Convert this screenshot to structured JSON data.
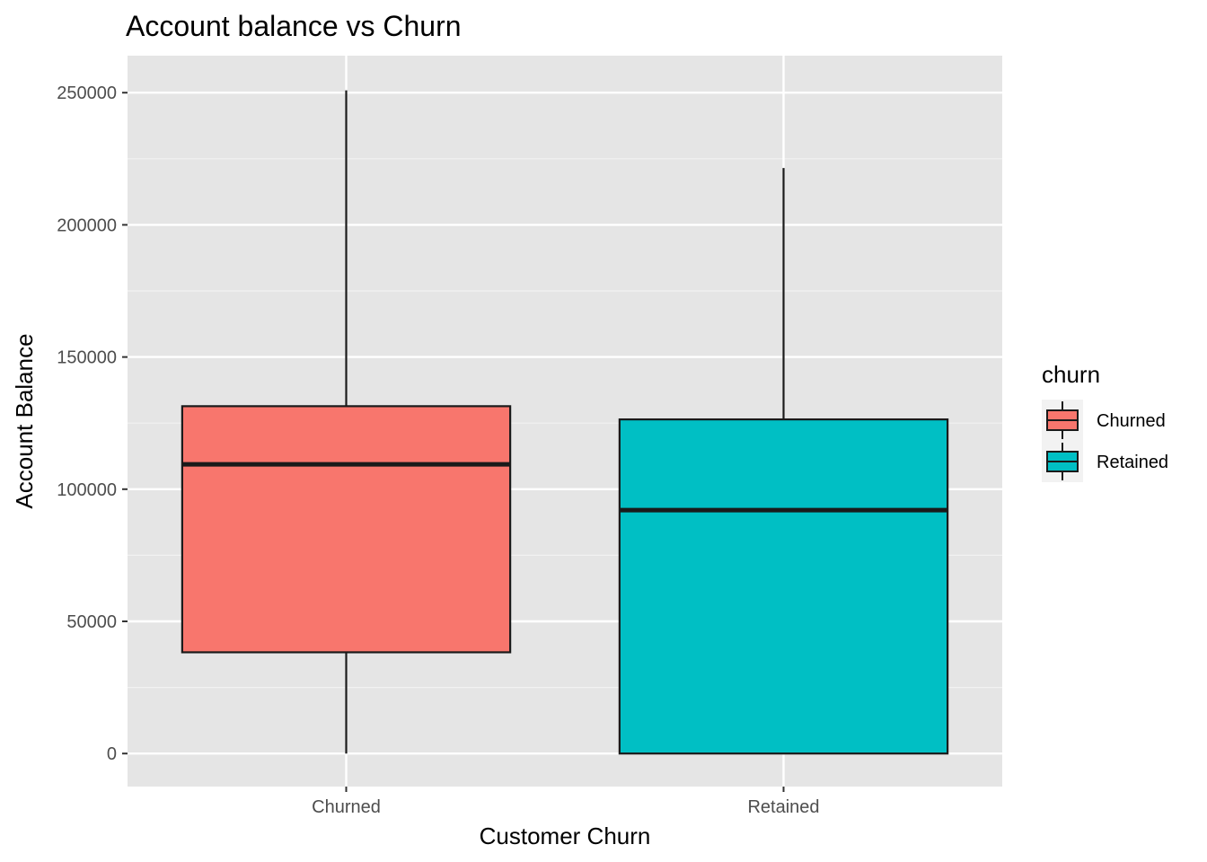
{
  "chart_data": {
    "type": "box",
    "title": "Account balance vs Churn",
    "xlabel": "Customer Churn",
    "ylabel": "Account Balance",
    "ylim": [
      -12500,
      264000
    ],
    "yticks": [
      0,
      50000,
      100000,
      150000,
      200000,
      250000
    ],
    "ytick_labels": [
      "0",
      "50000",
      "100000",
      "150000",
      "200000",
      "250000"
    ],
    "categories": [
      "Churned",
      "Retained"
    ],
    "boxes": [
      {
        "name": "Churned",
        "min": 0,
        "q1": 38300,
        "median": 109400,
        "q3": 131400,
        "max": 250900,
        "color": "#F8766D"
      },
      {
        "name": "Retained",
        "min": 0,
        "q1": 0,
        "median": 92100,
        "q3": 126400,
        "max": 221500,
        "color": "#00BFC4"
      }
    ],
    "grid": true,
    "panel_background": "#E5E5E5",
    "legend": {
      "title": "churn",
      "position": "right",
      "entries": [
        "Churned",
        "Retained"
      ]
    }
  }
}
